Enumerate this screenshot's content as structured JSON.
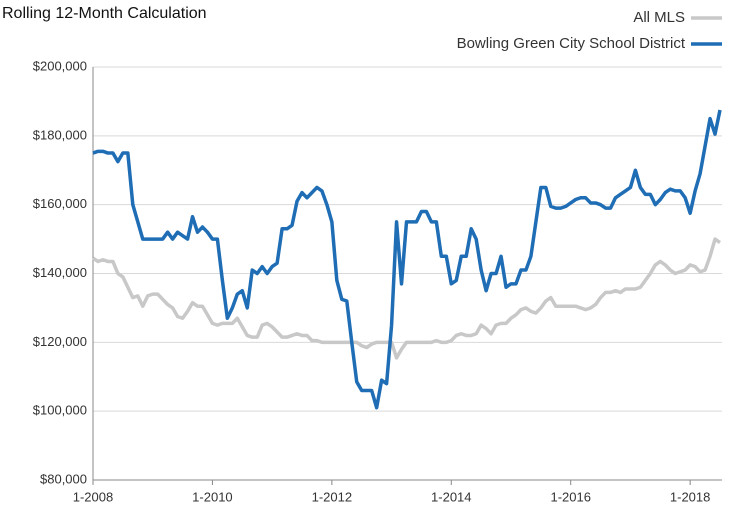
{
  "chart_data": {
    "type": "line",
    "title": "Rolling 12-Month Calculation",
    "categories": [
      "1-2008",
      null,
      null,
      null,
      null,
      null,
      null,
      null,
      null,
      null,
      null,
      null,
      null,
      null,
      null,
      null,
      null,
      null,
      null,
      null,
      null,
      null,
      null,
      null,
      "1-2010",
      null,
      null,
      null,
      null,
      null,
      null,
      null,
      null,
      null,
      null,
      null,
      null,
      null,
      null,
      null,
      null,
      null,
      null,
      null,
      null,
      null,
      null,
      null,
      "1-2012",
      null,
      null,
      null,
      null,
      null,
      null,
      null,
      null,
      null,
      null,
      null,
      null,
      null,
      null,
      null,
      null,
      null,
      null,
      null,
      null,
      null,
      null,
      null,
      "1-2014",
      null,
      null,
      null,
      null,
      null,
      null,
      null,
      null,
      null,
      null,
      null,
      null,
      null,
      null,
      null,
      null,
      null,
      null,
      null,
      null,
      null,
      null,
      null,
      "1-2016",
      null,
      null,
      null,
      null,
      null,
      null,
      null,
      null,
      null,
      null,
      null,
      null,
      null,
      null,
      null,
      null,
      null,
      null,
      null,
      null,
      null,
      null,
      null,
      "1-2018",
      null,
      null,
      null,
      null,
      null,
      null
    ],
    "series": [
      {
        "name": "All MLS",
        "color": "#c8c8c8",
        "values": [
          144500,
          143500,
          144000,
          143500,
          143500,
          140000,
          139000,
          136000,
          133000,
          133500,
          130500,
          133500,
          134000,
          134000,
          132500,
          131000,
          130000,
          127500,
          127000,
          129000,
          131500,
          130500,
          130500,
          128000,
          125500,
          125000,
          125500,
          125500,
          125500,
          127000,
          124500,
          122000,
          121500,
          121500,
          125000,
          125500,
          124500,
          123000,
          121500,
          121500,
          122000,
          122500,
          122000,
          122000,
          120500,
          120500,
          120000,
          120000,
          120000,
          120000,
          120000,
          120000,
          120000,
          120000,
          119000,
          118500,
          119500,
          120000,
          120000,
          120000,
          120000,
          115500,
          118000,
          120000,
          120000,
          120000,
          120000,
          120000,
          120000,
          120500,
          120000,
          120000,
          120500,
          122000,
          122500,
          122000,
          122000,
          122500,
          125000,
          124000,
          122500,
          125000,
          125500,
          125500,
          127000,
          128000,
          129500,
          130000,
          129000,
          128500,
          130000,
          132000,
          133000,
          130500,
          130500,
          130500,
          130500,
          130500,
          130000,
          129500,
          130000,
          131000,
          133000,
          134500,
          134500,
          135000,
          134500,
          135500,
          135500,
          135500,
          136000,
          138000,
          140000,
          142500,
          143500,
          142500,
          141000,
          140000,
          140500,
          141000,
          142500,
          142000,
          140500,
          141000,
          145000,
          150000,
          149000
        ]
      },
      {
        "name": "Bowling Green City School District",
        "color": "#1f6db5",
        "values": [
          175000,
          175500,
          175500,
          175000,
          175000,
          172500,
          175000,
          175000,
          160000,
          155000,
          150000,
          150000,
          150000,
          150000,
          150000,
          152000,
          150000,
          152000,
          151000,
          150000,
          156500,
          152000,
          153500,
          152000,
          150000,
          150000,
          138000,
          127000,
          130000,
          134000,
          135000,
          130000,
          141000,
          140000,
          142000,
          140000,
          142000,
          143000,
          153000,
          153000,
          154000,
          161000,
          163500,
          162000,
          163500,
          165000,
          164000,
          160000,
          155000,
          138000,
          132500,
          132000,
          120000,
          108500,
          106000,
          106000,
          106000,
          101000,
          109000,
          108000,
          125000,
          155000,
          137000,
          155000,
          155000,
          155000,
          158000,
          158000,
          155000,
          155000,
          145000,
          145000,
          137000,
          138000,
          145000,
          145000,
          153000,
          150000,
          141000,
          135000,
          140000,
          140000,
          145000,
          136000,
          137000,
          137000,
          141000,
          141000,
          145000,
          155000,
          165000,
          165000,
          159500,
          159000,
          159000,
          159500,
          160500,
          161500,
          162000,
          162000,
          160500,
          160500,
          160000,
          159000,
          159000,
          162000,
          163000,
          164000,
          165000,
          170000,
          165000,
          163000,
          163000,
          160000,
          161500,
          163500,
          164500,
          164000,
          164000,
          162000,
          157500,
          164000,
          169000,
          177000,
          185000,
          180500,
          187500
        ]
      }
    ],
    "ylim": [
      80000,
      200000
    ],
    "yticks": [
      {
        "value": 80000,
        "label": "$80,000"
      },
      {
        "value": 100000,
        "label": "$100,000"
      },
      {
        "value": 120000,
        "label": "$120,000"
      },
      {
        "value": 140000,
        "label": "$140,000"
      },
      {
        "value": 160000,
        "label": "$160,000"
      },
      {
        "value": 180000,
        "label": "$180,000"
      },
      {
        "value": 200000,
        "label": "$200,000"
      }
    ],
    "grid": true
  }
}
